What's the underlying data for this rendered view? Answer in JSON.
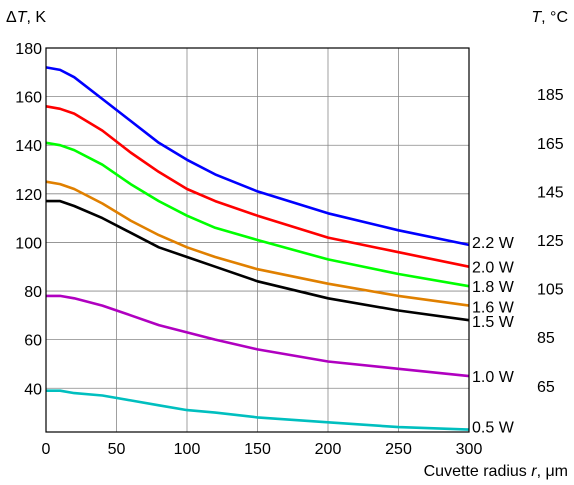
{
  "chart_data": {
    "type": "line",
    "xlabel_prefix": "Cuvette radius ",
    "xlabel_var": "r",
    "xlabel_suffix": ", μm",
    "ylabel_var": "T",
    "ylabel_prefix": "Δ",
    "ylabel_suffix": ", K",
    "y2label_var": "T",
    "y2label_suffix": ", °C",
    "xlim": [
      0,
      300
    ],
    "ylim": [
      22,
      180
    ],
    "x_ticks": [
      "0",
      "50",
      "100",
      "150",
      "200",
      "250",
      "300"
    ],
    "y_ticks": [
      "40",
      "60",
      "80",
      "100",
      "120",
      "140",
      "160",
      "180"
    ],
    "y2_ticks": [
      "65",
      "85",
      "105",
      "125",
      "145",
      "165",
      "185"
    ],
    "y2_tick_positions": [
      41,
      61,
      81,
      101,
      121,
      141,
      161
    ],
    "grid": true,
    "x": [
      0,
      10,
      20,
      40,
      60,
      80,
      100,
      120,
      150,
      200,
      250,
      300
    ],
    "series": [
      {
        "name": "2.2 W",
        "color": "#0000ff",
        "values": [
          172,
          171,
          168,
          159,
          150,
          141,
          134,
          128,
          121,
          112,
          105,
          99
        ]
      },
      {
        "name": "2.0 W",
        "color": "#ff0000",
        "values": [
          156,
          155,
          153,
          146,
          137,
          129,
          122,
          117,
          111,
          102,
          96,
          90
        ]
      },
      {
        "name": "1.8 W",
        "color": "#00ff00",
        "values": [
          141,
          140,
          138,
          132,
          124,
          117,
          111,
          106,
          101,
          93,
          87,
          82
        ]
      },
      {
        "name": "1.6 W",
        "color": "#e08000",
        "values": [
          125,
          124,
          122,
          116,
          109,
          103,
          98,
          94,
          89,
          83,
          78,
          74
        ]
      },
      {
        "name": "1.5 W",
        "color": "#000000",
        "values": [
          117,
          117,
          115,
          110,
          104,
          98,
          94,
          90,
          84,
          77,
          72,
          68
        ]
      },
      {
        "name": "1.0 W",
        "color": "#b000c0",
        "values": [
          78,
          78,
          77,
          74,
          70,
          66,
          63,
          60,
          56,
          51,
          48,
          45
        ]
      },
      {
        "name": "0.5 W",
        "color": "#00bfbf",
        "values": [
          39,
          39,
          38,
          37,
          35,
          33,
          31,
          30,
          28,
          26,
          24,
          23
        ]
      }
    ]
  }
}
